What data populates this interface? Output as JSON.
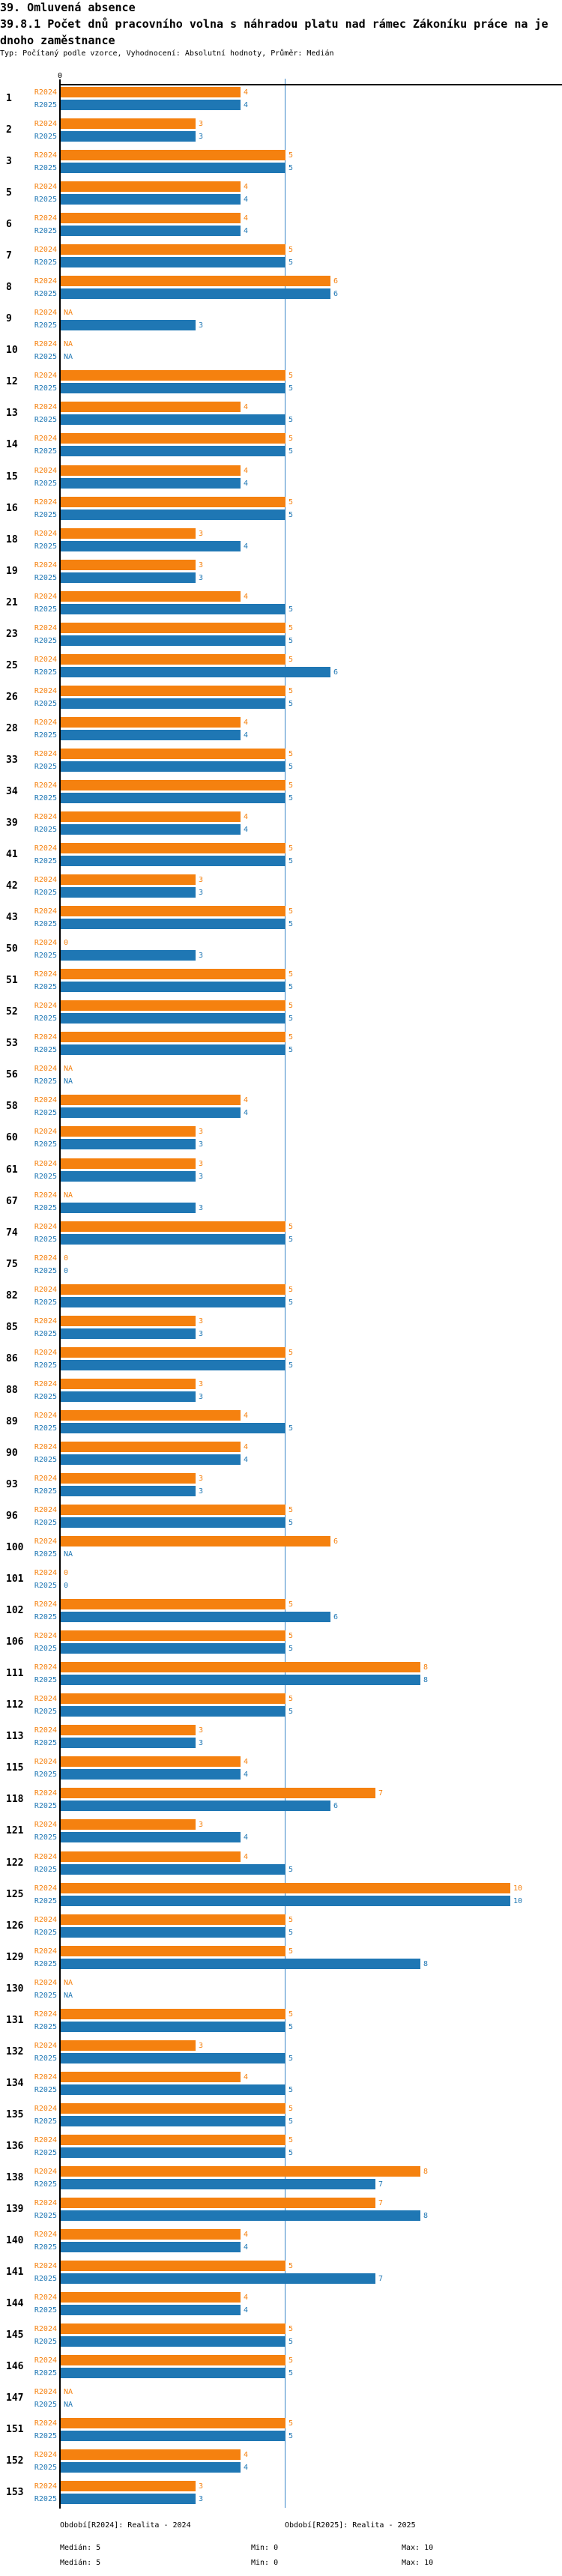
{
  "title": {
    "line1": "39. Omluvená absence",
    "line2": "39.8.1 Počet dnů pracovního volna s náhradou platu nad rámec Zákoníku práce na je",
    "line3": "dnoho zaměstnance",
    "meta": "Typ: Počítaný podle vzorce, Vyhodnocení: Absolutní hodnoty, Průměr: Medián"
  },
  "colors": {
    "r2024": "#f5810f",
    "r2025": "#1f77b4",
    "gridline": "#3b87c8",
    "axis": "#000000"
  },
  "na_label": "NA",
  "axis": {
    "zero_label": "0"
  },
  "legend": {
    "period_2024": "Období[R2024]: Realita - 2024",
    "period_2025": "Období[R2025]: Realita - 2025",
    "stats_2024": {
      "median": "Medián: 5",
      "min": "Min: 0",
      "max": "Max: 10"
    },
    "stats_2025": {
      "median": "Medián: 5",
      "min": "Min: 0",
      "max": "Max: 10"
    }
  },
  "chart_data": {
    "type": "bar",
    "orientation": "horizontal",
    "title": "39.8.1 Počet dnů pracovního volna s náhradou platu nad rámec Zákoníku práce na jednoho zaměstnance",
    "xlim": [
      0,
      10
    ],
    "gridline_at": 5,
    "series_labels": [
      "R2024",
      "R2025"
    ],
    "series_periods": [
      "Realita - 2024",
      "Realita - 2025"
    ],
    "summary": {
      "R2024": {
        "median": 5,
        "min": 0,
        "max": 10
      },
      "R2025": {
        "median": 5,
        "min": 0,
        "max": 10
      }
    },
    "rows": [
      [
        1,
        4,
        4
      ],
      [
        2,
        3,
        3
      ],
      [
        3,
        5,
        5
      ],
      [
        5,
        4,
        4
      ],
      [
        6,
        4,
        4
      ],
      [
        7,
        5,
        5
      ],
      [
        8,
        6,
        6
      ],
      [
        9,
        null,
        3
      ],
      [
        10,
        null,
        null
      ],
      [
        12,
        5,
        5
      ],
      [
        13,
        4,
        5
      ],
      [
        14,
        5,
        5
      ],
      [
        15,
        4,
        4
      ],
      [
        16,
        5,
        5
      ],
      [
        18,
        3,
        4
      ],
      [
        19,
        3,
        3
      ],
      [
        21,
        4,
        5
      ],
      [
        23,
        5,
        5
      ],
      [
        25,
        5,
        6
      ],
      [
        26,
        5,
        5
      ],
      [
        28,
        4,
        4
      ],
      [
        33,
        5,
        5
      ],
      [
        34,
        5,
        5
      ],
      [
        39,
        4,
        4
      ],
      [
        41,
        5,
        5
      ],
      [
        42,
        3,
        3
      ],
      [
        43,
        5,
        5
      ],
      [
        50,
        0,
        3
      ],
      [
        51,
        5,
        5
      ],
      [
        52,
        5,
        5
      ],
      [
        53,
        5,
        5
      ],
      [
        56,
        null,
        null
      ],
      [
        58,
        4,
        4
      ],
      [
        60,
        3,
        3
      ],
      [
        61,
        3,
        3
      ],
      [
        67,
        null,
        3
      ],
      [
        74,
        5,
        5
      ],
      [
        75,
        0,
        0
      ],
      [
        82,
        5,
        5
      ],
      [
        85,
        3,
        3
      ],
      [
        86,
        5,
        5
      ],
      [
        88,
        3,
        3
      ],
      [
        89,
        4,
        5
      ],
      [
        90,
        4,
        4
      ],
      [
        93,
        3,
        3
      ],
      [
        96,
        5,
        5
      ],
      [
        100,
        6,
        null
      ],
      [
        101,
        0,
        0
      ],
      [
        102,
        5,
        6
      ],
      [
        106,
        5,
        5
      ],
      [
        111,
        8,
        8
      ],
      [
        112,
        5,
        5
      ],
      [
        113,
        3,
        3
      ],
      [
        115,
        4,
        4
      ],
      [
        118,
        7,
        6
      ],
      [
        121,
        3,
        4
      ],
      [
        122,
        4,
        5
      ],
      [
        125,
        10,
        10
      ],
      [
        126,
        5,
        5
      ],
      [
        129,
        5,
        8
      ],
      [
        130,
        null,
        null
      ],
      [
        131,
        5,
        5
      ],
      [
        132,
        3,
        5
      ],
      [
        134,
        4,
        5
      ],
      [
        135,
        5,
        5
      ],
      [
        136,
        5,
        5
      ],
      [
        138,
        8,
        7
      ],
      [
        139,
        7,
        8
      ],
      [
        140,
        4,
        4
      ],
      [
        141,
        5,
        7
      ],
      [
        144,
        4,
        4
      ],
      [
        145,
        5,
        5
      ],
      [
        146,
        5,
        5
      ],
      [
        147,
        null,
        null
      ],
      [
        151,
        5,
        5
      ],
      [
        152,
        4,
        4
      ],
      [
        153,
        3,
        3
      ]
    ]
  }
}
